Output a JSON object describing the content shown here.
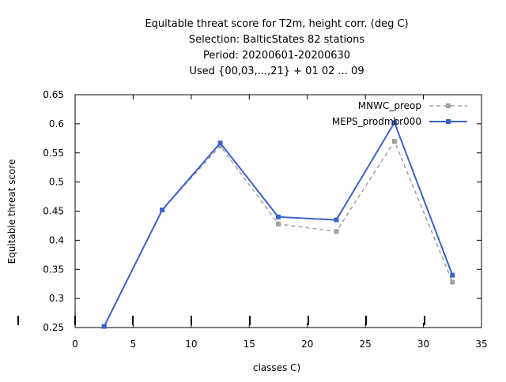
{
  "chart_data": {
    "type": "line",
    "title_lines": [
      "Equitable threat score  for T2m, height corr. (deg C)",
      "Selection: BalticStates     82 stations",
      "Period: 20200601-20200630",
      "Used {00,03,...,21} + 01 02 ... 09"
    ],
    "xlabel": "classes C)",
    "ylabel": "Equitable threat score",
    "xlim": [
      0,
      35
    ],
    "ylim": [
      0.25,
      0.65
    ],
    "x_ticks": [
      "0",
      "5",
      "10",
      "15",
      "20",
      "25",
      "30",
      "35"
    ],
    "y_ticks": [
      "0.25",
      "0.3",
      "0.35",
      "0.4",
      "0.45",
      "0.5",
      "0.55",
      "0.6",
      "0.65"
    ],
    "x": [
      2.5,
      7.5,
      12.5,
      17.5,
      22.5,
      27.5,
      32.5
    ],
    "series": [
      {
        "name": "MNWC_preop",
        "color": "#a0a0a0",
        "style": "dashed",
        "values": [
          0.252,
          0.452,
          0.562,
          0.428,
          0.415,
          0.57,
          0.328
        ]
      },
      {
        "name": "MEPS_prodmbr000",
        "color": "#3a63c9",
        "style": "solid",
        "values": [
          0.252,
          0.452,
          0.567,
          0.44,
          0.435,
          0.602,
          0.34
        ]
      }
    ],
    "legend_position": "top-right"
  }
}
